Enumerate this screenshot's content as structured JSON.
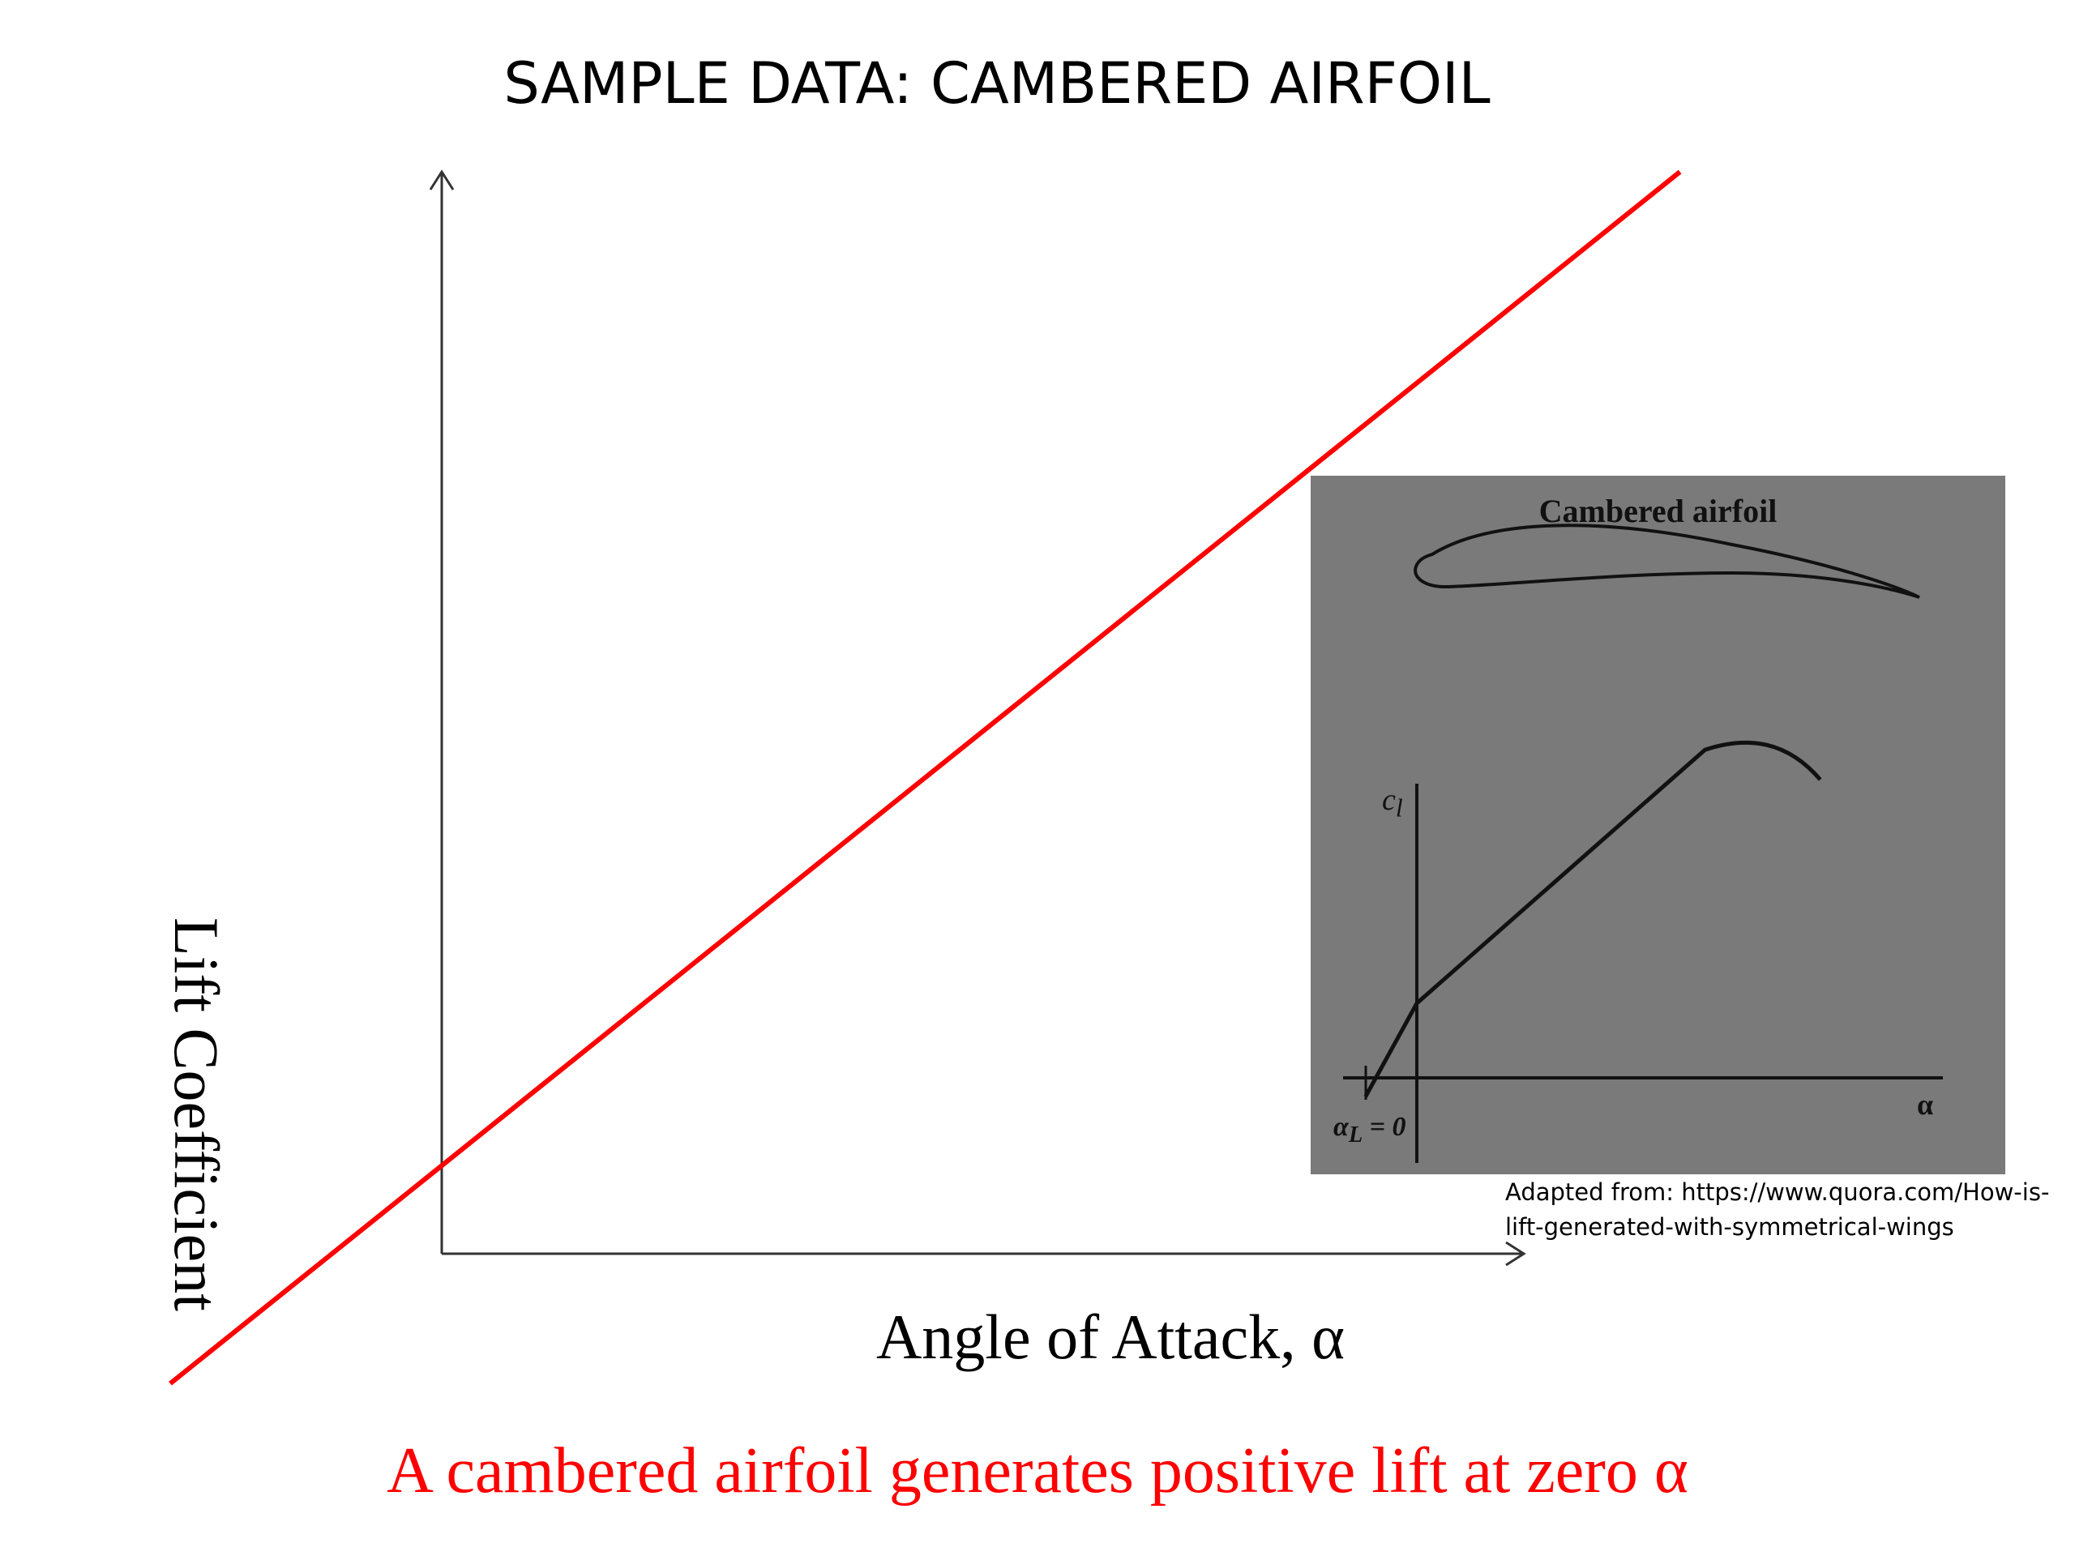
{
  "chart_data": [
    {
      "type": "line",
      "title": "SAMPLE DATA: CAMBERED AIRFOIL",
      "xlabel": "Angle of Attack, α",
      "ylabel": "Lift Coefficient",
      "x_ticks": [],
      "y_ticks": [],
      "grid": false,
      "legend": "none",
      "series": [
        {
          "color": "#ff0000",
          "x": [
            -0.25,
            1.14
          ],
          "y": [
            -0.12,
            1.0
          ],
          "note_caption": "A cambered airfoil generates positive lift at zero α"
        }
      ]
    },
    {
      "type": "line",
      "title": "Cambered airfoil",
      "xlabel": "α",
      "ylabel": "c_l",
      "zero_lift_label": "α_L = 0",
      "grid": false,
      "legend": "none",
      "series": [
        {
          "color": "#111111",
          "x": [
            -0.08,
            0.0,
            0.45,
            0.52,
            0.58,
            0.63
          ],
          "y": [
            -0.05,
            0.2,
            0.88,
            0.92,
            0.9,
            0.8
          ]
        }
      ]
    }
  ],
  "caption": {
    "text": "A cambered airfoil generates positive lift at zero α",
    "color": "#ff0000"
  },
  "inset": {
    "title": "Cambered airfoil",
    "ylabel": "c",
    "ylabel_sub": "l",
    "xlabel": "α",
    "zero_lift": "α",
    "zero_lift_sub": "L",
    "zero_lift_eq": " = 0"
  },
  "source": "Adapted from: https://www.quora.com/How-is-lift-generated-with-symmetrical-wings"
}
